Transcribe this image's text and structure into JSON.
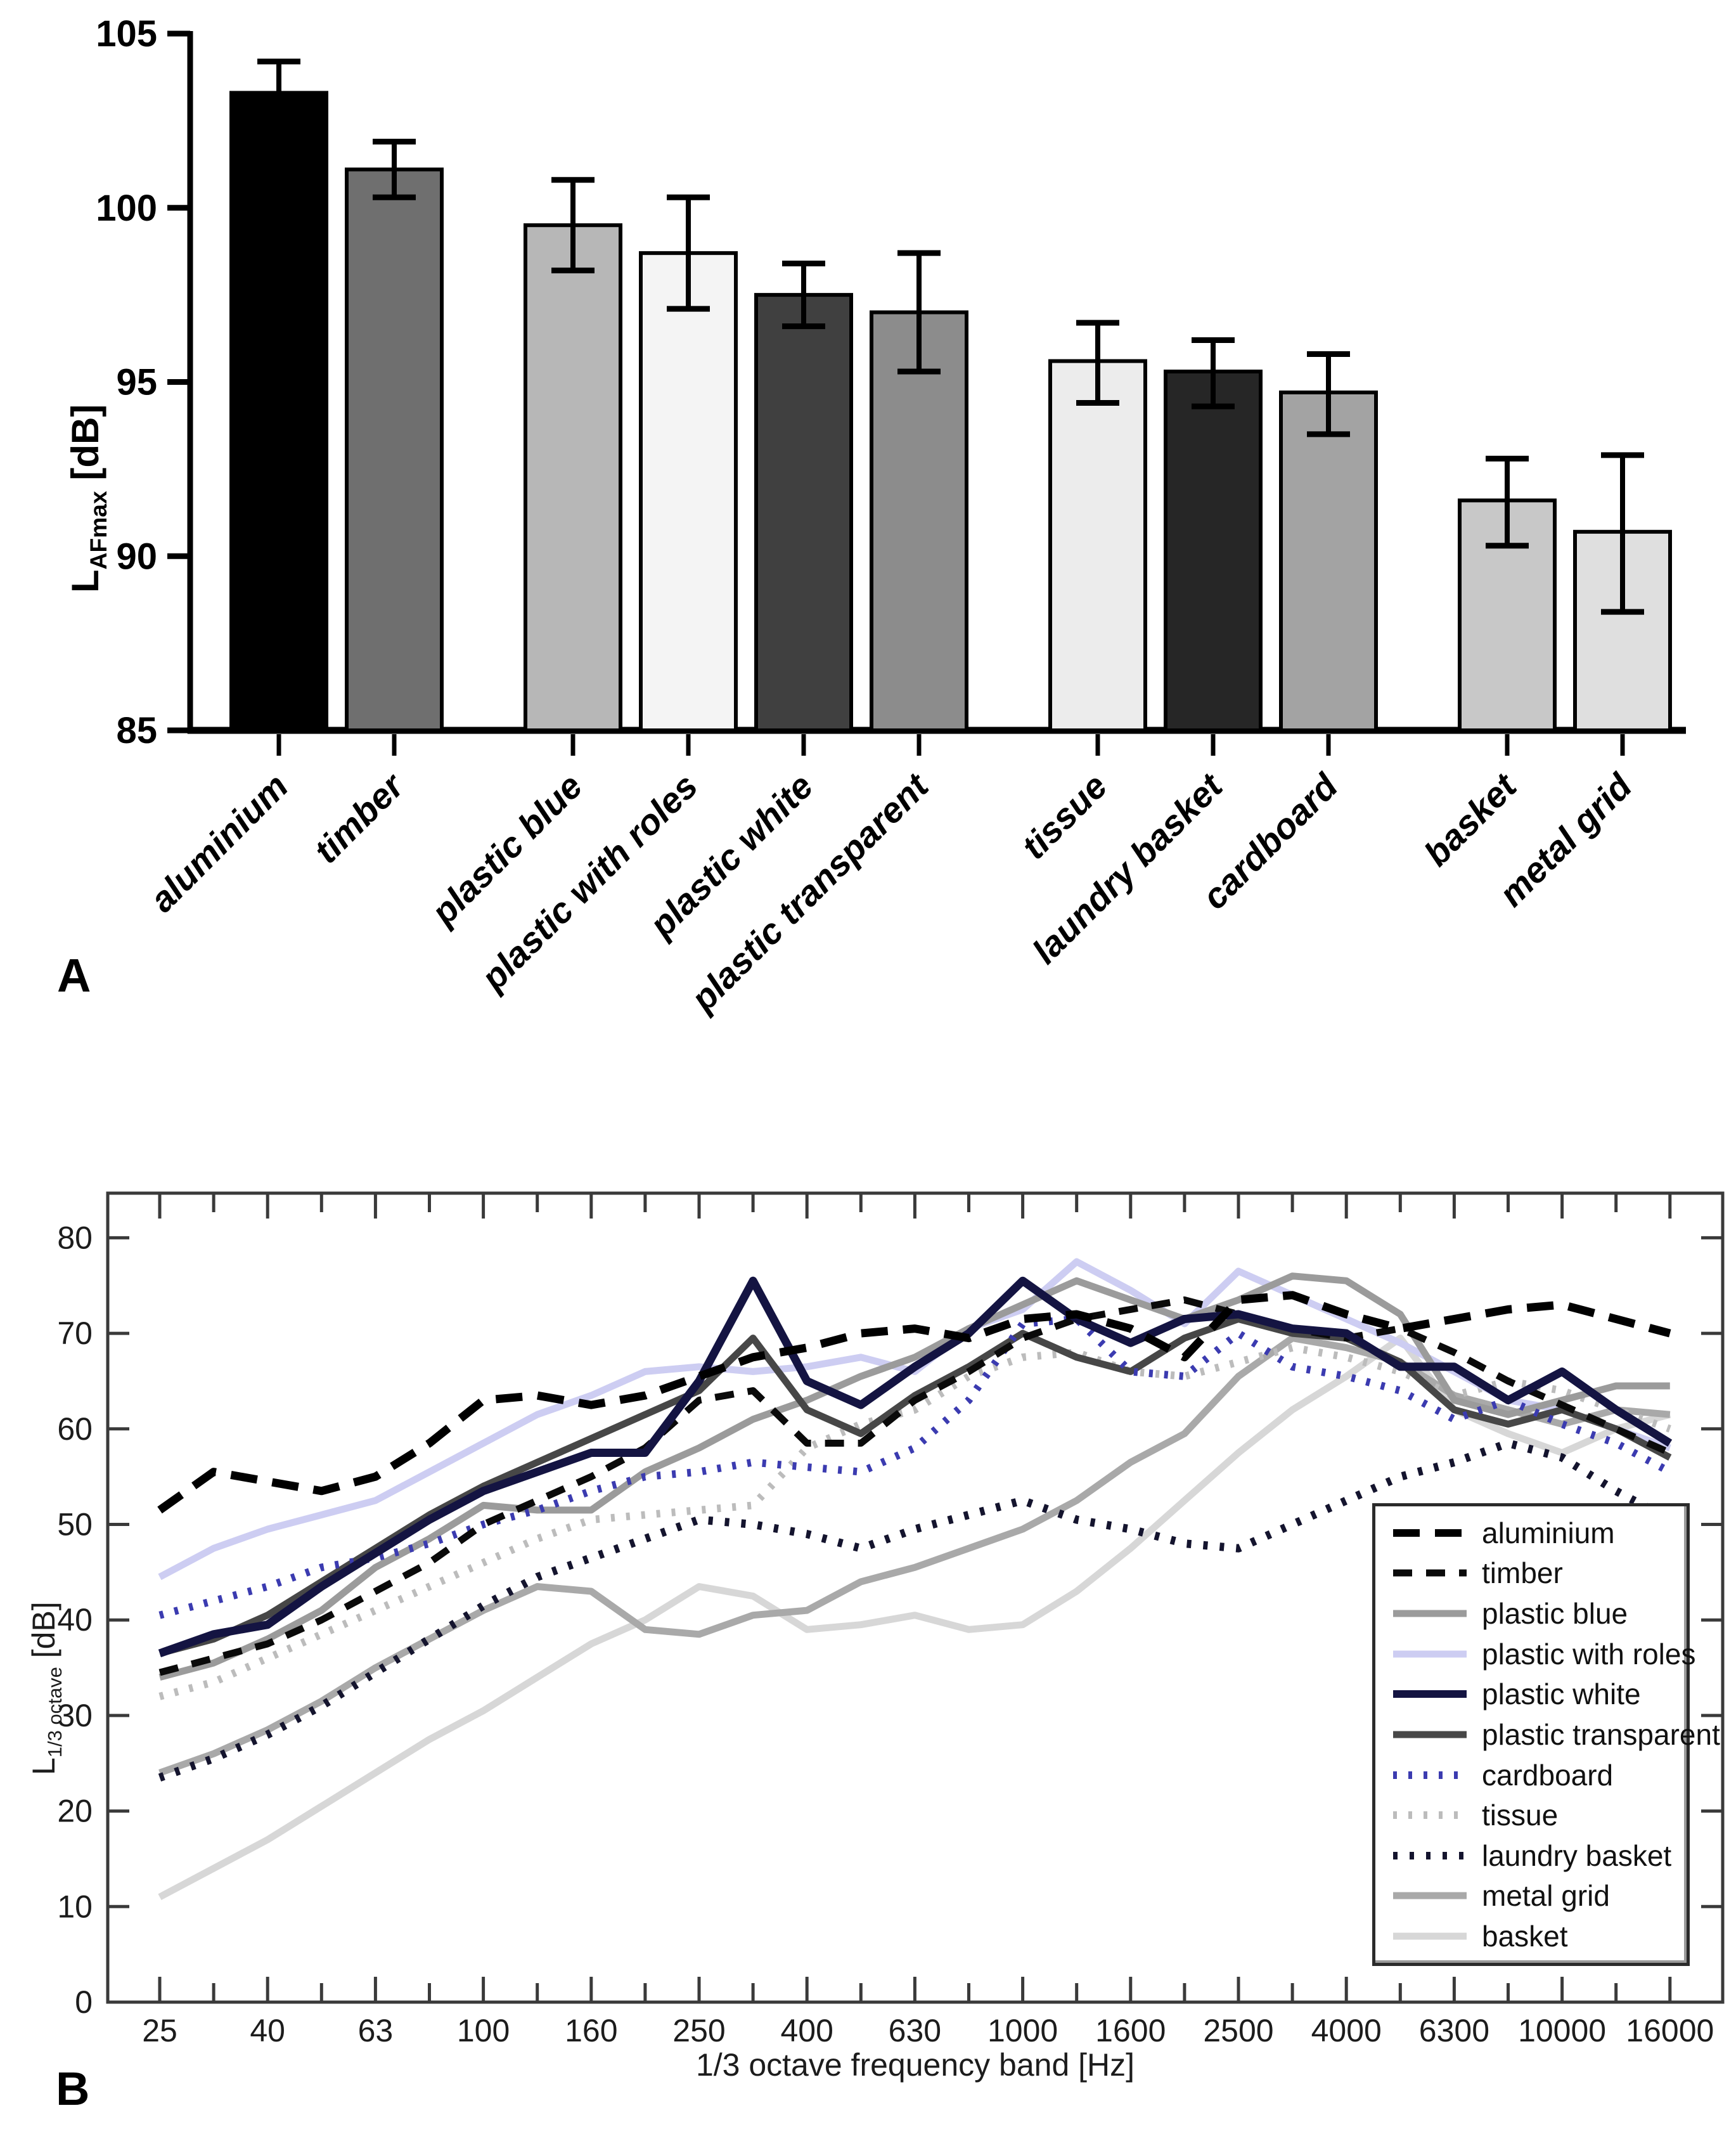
{
  "figure": {
    "panelA": {
      "label": "A",
      "ylabel": {
        "main": "L",
        "sub": "AFmax",
        "unit": " [dB]"
      }
    },
    "panelB": {
      "label": "B",
      "ylabel": {
        "main": "L",
        "sub": "1/3 octave",
        "unit": " [dB]"
      },
      "xlabel": "1/3 octave frequency band [Hz]"
    }
  },
  "chart_data": [
    {
      "id": "panelA",
      "type": "bar",
      "title": "",
      "ylabel": "L_AFmax [dB]",
      "ylim": [
        85,
        105
      ],
      "yticks": [
        85,
        90,
        95,
        100,
        105
      ],
      "grid": false,
      "categories": [
        "aluminium",
        "timber",
        "plastic blue",
        "plastic with roles",
        "plastic white",
        "plastic transparent",
        "tissue",
        "laundry basket",
        "cardboard",
        "basket",
        "metal grid"
      ],
      "values": [
        103.3,
        101.1,
        99.5,
        98.7,
        97.5,
        97.0,
        95.6,
        95.3,
        94.7,
        91.6,
        90.7
      ],
      "error_low": [
        102.5,
        100.3,
        98.2,
        97.1,
        96.6,
        95.3,
        94.4,
        94.3,
        93.5,
        90.3,
        88.4
      ],
      "error_high": [
        104.2,
        101.9,
        100.8,
        100.3,
        98.4,
        98.7,
        96.7,
        96.2,
        95.8,
        92.8,
        92.9
      ],
      "bar_colors": [
        "#000000",
        "#6f6f6f",
        "#b7b7b7",
        "#f4f4f4",
        "#404040",
        "#8c8c8c",
        "#ececec",
        "#262626",
        "#a3a3a3",
        "#c8c8c8",
        "#dfdfdf"
      ],
      "bar_groups": [
        2,
        4,
        3,
        2
      ]
    },
    {
      "id": "panelB",
      "type": "line",
      "title": "",
      "xlabel": "1/3 octave frequency band [Hz]",
      "ylabel": "L_1/3 octave [dB]",
      "ylim": [
        0,
        84
      ],
      "yticks": [
        0,
        10,
        20,
        30,
        40,
        50,
        60,
        70,
        80
      ],
      "grid": false,
      "legend_position": "bottom-right",
      "x": [
        25,
        31.5,
        40,
        50,
        63,
        80,
        100,
        125,
        160,
        200,
        250,
        315,
        400,
        500,
        630,
        800,
        1000,
        1250,
        1600,
        2000,
        2500,
        3150,
        4000,
        5000,
        6300,
        8000,
        10000,
        12500,
        16000
      ],
      "x_tick_labels": [
        "25",
        "40",
        "63",
        "100",
        "160",
        "250",
        "400",
        "630",
        "1000",
        "1600",
        "2500",
        "4000",
        "6300",
        "10000",
        "16000"
      ],
      "legend_order": [
        "aluminium",
        "timber",
        "plastic blue",
        "plastic with roles",
        "plastic white",
        "plastic transparent",
        "cardboard",
        "tissue",
        "laundry basket",
        "metal grid",
        "basket"
      ],
      "series": [
        {
          "name": "aluminium",
          "style": "dashed",
          "color": "#000000",
          "width": 13,
          "dash": "42 24",
          "values": [
            51.5,
            55.5,
            54.5,
            53.5,
            55,
            58.5,
            63,
            63.5,
            62.5,
            63.5,
            65.5,
            67.5,
            68.5,
            70,
            70.5,
            69.5,
            71.5,
            72,
            70.5,
            67.5,
            73.5,
            74,
            72,
            70.5,
            71.5,
            72.5,
            73,
            71.5,
            70
          ]
        },
        {
          "name": "timber",
          "style": "dashed",
          "color": "#0a0a0a",
          "width": 11,
          "dash": "30 22",
          "values": [
            34.5,
            36,
            37.5,
            40,
            43,
            46,
            50,
            52.5,
            55,
            58,
            63,
            64,
            58.5,
            58.5,
            63,
            66,
            69.5,
            71.5,
            72.5,
            73.5,
            72,
            70.5,
            69.5,
            70.5,
            68,
            65,
            62.5,
            60,
            57.5
          ]
        },
        {
          "name": "plastic blue",
          "style": "solid",
          "color": "#9b9b9b",
          "width": 11,
          "dash": "",
          "values": [
            34,
            35.5,
            38,
            41,
            45.5,
            48.5,
            52,
            51.5,
            51.5,
            55.5,
            58,
            61,
            63,
            65.5,
            67.5,
            70.5,
            73,
            75.5,
            73.5,
            71.5,
            73.5,
            76,
            75.5,
            72,
            63,
            61.5,
            63,
            64.5,
            64.5
          ]
        },
        {
          "name": "plastic with roles",
          "style": "solid",
          "color": "#cdcdf2",
          "width": 11,
          "dash": "",
          "values": [
            44.5,
            47.5,
            49.5,
            51,
            52.5,
            55.5,
            58.5,
            61.5,
            63.5,
            66,
            66.5,
            66,
            66.5,
            67.5,
            66,
            70.5,
            72.5,
            77.5,
            74.5,
            71,
            76.5,
            74,
            71.5,
            69,
            66,
            63,
            62,
            60,
            58
          ]
        },
        {
          "name": "plastic white",
          "style": "solid",
          "color": "#141442",
          "width": 13,
          "dash": "",
          "values": [
            36.5,
            38.5,
            39.5,
            43.5,
            47,
            50.5,
            53.5,
            55.5,
            57.5,
            57.5,
            65,
            75.5,
            65,
            62.5,
            66.5,
            70,
            75.5,
            71.5,
            69,
            71.5,
            72,
            70.5,
            70,
            66.5,
            66.5,
            63,
            66,
            62,
            58.5
          ]
        },
        {
          "name": "plastic transparent",
          "style": "solid",
          "color": "#474747",
          "width": 11,
          "dash": "",
          "values": [
            36.5,
            38,
            40.5,
            44,
            47.5,
            51,
            54,
            56.5,
            59,
            61.5,
            64,
            69.5,
            62,
            59.5,
            63.5,
            66.5,
            70,
            67.5,
            66,
            69.5,
            71.5,
            70,
            69.5,
            67,
            62,
            60.5,
            62,
            60,
            57
          ]
        },
        {
          "name": "cardboard",
          "style": "dotted",
          "color": "#3b3bb0",
          "width": 12,
          "dash": "6 18",
          "values": [
            40.5,
            42,
            43.5,
            45.5,
            46.5,
            48,
            50,
            51.5,
            53.5,
            55,
            55.5,
            56.5,
            56,
            55.5,
            58,
            63,
            71,
            71.5,
            66,
            65.5,
            70,
            66.5,
            65.5,
            64,
            61,
            63,
            60.5,
            58.5,
            55.5
          ]
        },
        {
          "name": "tissue",
          "style": "dotted",
          "color": "#bcbcbc",
          "width": 12,
          "dash": "6 18",
          "values": [
            32,
            33.5,
            36,
            38.5,
            41,
            43.5,
            46,
            48.5,
            50.5,
            51,
            51.5,
            52,
            58,
            60.5,
            62,
            65.5,
            67.5,
            68,
            66,
            65.5,
            67,
            68.5,
            67.5,
            66,
            63.5,
            65,
            64,
            62,
            60
          ]
        },
        {
          "name": "laundry basket",
          "style": "dotted",
          "color": "#14142e",
          "width": 13,
          "dash": "7 19",
          "values": [
            23.5,
            25.5,
            28,
            31,
            34.5,
            38,
            41.5,
            44.5,
            46.5,
            48.5,
            50.5,
            50,
            49,
            47.5,
            49.5,
            51,
            52.5,
            50.5,
            49.5,
            48,
            47.5,
            50,
            52.5,
            55,
            56.5,
            58.5,
            57,
            53.5,
            50.5
          ]
        },
        {
          "name": "metal grid",
          "style": "solid",
          "color": "#a9a9a9",
          "width": 11,
          "dash": "",
          "values": [
            24,
            26,
            28.5,
            31.5,
            35,
            38,
            41,
            43.5,
            43,
            39,
            38.5,
            40.5,
            41,
            44,
            45.5,
            47.5,
            49.5,
            52.5,
            56.5,
            59.5,
            65.5,
            69.5,
            68.5,
            67,
            63.5,
            62,
            60.5,
            62,
            61.5
          ]
        },
        {
          "name": "basket",
          "style": "solid",
          "color": "#d7d7d7",
          "width": 11,
          "dash": "",
          "values": [
            11,
            14,
            17,
            20.5,
            24,
            27.5,
            30.5,
            34,
            37.5,
            40,
            43.5,
            42.5,
            39,
            39.5,
            40.5,
            39,
            39.5,
            43,
            47.5,
            52.5,
            57.5,
            62,
            65.5,
            69.5,
            62,
            59.5,
            57.5,
            60,
            61.5
          ]
        }
      ]
    }
  ]
}
